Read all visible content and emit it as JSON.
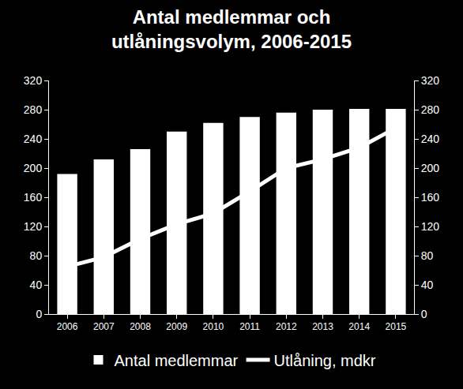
{
  "chart_data": {
    "type": "bar",
    "title": "Antal medlemmar och\nutlåningsvolym, 2006-2015",
    "categories": [
      "2006",
      "2007",
      "2008",
      "2009",
      "2010",
      "2011",
      "2012",
      "2013",
      "2014",
      "2015"
    ],
    "series": [
      {
        "name": "Antal medlemmar",
        "type": "bar",
        "color": "#ffffff",
        "values": [
          192,
          212,
          226,
          250,
          262,
          270,
          276,
          280,
          281,
          281
        ]
      },
      {
        "name": "Utlåning, mdkr",
        "type": "line",
        "color": "#ffffff",
        "axis": "y2",
        "values": [
          65,
          78,
          103,
          123,
          138,
          168,
          200,
          212,
          228,
          255
        ]
      }
    ],
    "ylim": [
      0,
      320
    ],
    "yticks": [
      0,
      40,
      80,
      120,
      160,
      200,
      240,
      280,
      320
    ],
    "y2lim": [
      0,
      320
    ],
    "y2ticks": [
      0,
      40,
      80,
      120,
      160,
      200,
      240,
      280,
      320
    ],
    "grid": false,
    "legend": "bottom"
  }
}
